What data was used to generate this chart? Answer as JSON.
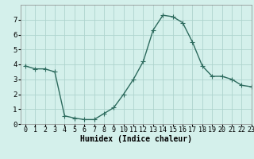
{
  "x": [
    0,
    1,
    2,
    3,
    4,
    5,
    6,
    7,
    8,
    9,
    10,
    11,
    12,
    13,
    14,
    15,
    16,
    17,
    18,
    19,
    20,
    21,
    22,
    23
  ],
  "y": [
    3.9,
    3.7,
    3.7,
    3.5,
    0.55,
    0.4,
    0.3,
    0.3,
    0.7,
    1.1,
    2.0,
    3.0,
    4.2,
    6.3,
    7.3,
    7.2,
    6.8,
    5.5,
    3.9,
    3.2,
    3.2,
    3.0,
    2.6,
    2.5
  ],
  "line_color": "#2d6b5e",
  "marker": "+",
  "markersize": 4,
  "linewidth": 1.0,
  "bg_color": "#d4f0eb",
  "grid_color": "#aed4ce",
  "xlabel": "Humidex (Indice chaleur)",
  "xlabel_fontsize": 7,
  "xlim": [
    -0.5,
    23
  ],
  "ylim": [
    0,
    8
  ],
  "yticks": [
    0,
    1,
    2,
    3,
    4,
    5,
    6,
    7
  ],
  "xticks": [
    0,
    1,
    2,
    3,
    4,
    5,
    6,
    7,
    8,
    9,
    10,
    11,
    12,
    13,
    14,
    15,
    16,
    17,
    18,
    19,
    20,
    21,
    22,
    23
  ],
  "tick_fontsize": 6,
  "fig_width": 3.2,
  "fig_height": 2.0,
  "dpi": 100
}
